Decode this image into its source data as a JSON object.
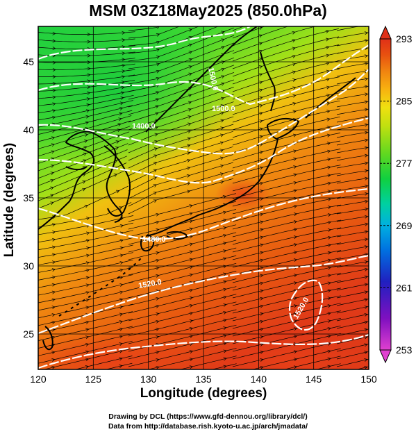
{
  "title": "MSM 03Z18May2025 (850.0hPa)",
  "x_axis": {
    "label": "Longitude (degrees)",
    "ticks": [
      "120",
      "125",
      "130",
      "135",
      "140",
      "145",
      "150"
    ],
    "range": [
      120,
      150
    ]
  },
  "y_axis": {
    "label": "Latitude  (degrees)",
    "ticks": [
      "25",
      "30",
      "35",
      "40",
      "45"
    ],
    "range": [
      22.4,
      47.6
    ]
  },
  "colorbar": {
    "ticks": [
      "253",
      "261",
      "269",
      "277",
      "285",
      "293"
    ],
    "range": [
      253,
      293
    ],
    "colors": [
      "#e040d0",
      "#8010c0",
      "#2020c0",
      "#0070e0",
      "#00b0e0",
      "#00d0a0",
      "#10d040",
      "#60d820",
      "#c0e010",
      "#f0e010",
      "#f8b010",
      "#f08010",
      "#e85010",
      "#e03018"
    ]
  },
  "contours": {
    "values": [
      "1500.0",
      "1400.0",
      "1480.0",
      "1500.0",
      "1520.0",
      "1520.0"
    ],
    "color": "#ffffff"
  },
  "credits": {
    "line1": "Drawing by DCL (https://www.gfd-dennou.org/library/dcl/)",
    "line2": "Data from http://database.rish.kyoto-u.ac.jp/arch/jmadata/"
  }
}
